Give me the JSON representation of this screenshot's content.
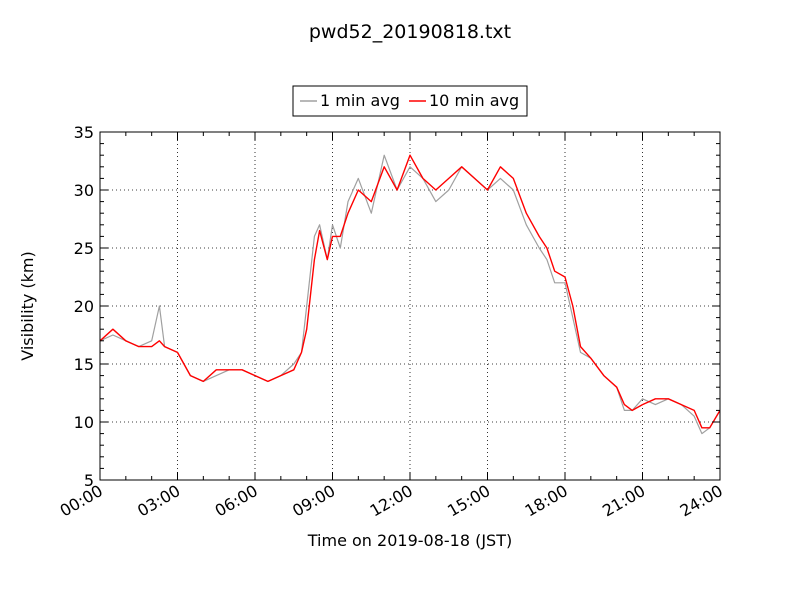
{
  "chart_data": {
    "type": "line",
    "title": "pwd52_20190818.txt",
    "xlabel": "Time on 2019-08-18 (JST)",
    "ylabel": "Visibility (km)",
    "xlim": [
      "00:00",
      "24:00"
    ],
    "ylim": [
      5,
      35
    ],
    "x_ticks": [
      "00:00",
      "03:00",
      "06:00",
      "09:00",
      "12:00",
      "15:00",
      "18:00",
      "21:00",
      "24:00"
    ],
    "y_ticks": [
      "5",
      "10",
      "15",
      "20",
      "25",
      "30",
      "35"
    ],
    "grid": true,
    "legend_position": "top-center",
    "x_unit": "hours",
    "series": [
      {
        "name": "1 min avg",
        "color": "#a0a0a0",
        "x": [
          0,
          0.5,
          1,
          1.5,
          2,
          2.3,
          2.5,
          3,
          3.5,
          4,
          4.5,
          5,
          5.5,
          6,
          6.5,
          7,
          7.5,
          7.8,
          8,
          8.3,
          8.5,
          8.8,
          9,
          9.3,
          9.6,
          10,
          10.5,
          11,
          11.5,
          12,
          12.5,
          13,
          13.5,
          14,
          14.5,
          15,
          15.5,
          16,
          16.5,
          17,
          17.3,
          17.6,
          18,
          18.3,
          18.6,
          19,
          19.5,
          20,
          20.3,
          20.6,
          21,
          21.5,
          22,
          22.5,
          23,
          23.3,
          23.6,
          24
        ],
        "y": [
          17,
          17.5,
          17,
          16.5,
          17,
          20,
          16.5,
          16,
          14,
          13.5,
          14,
          14.5,
          14.5,
          14,
          13.5,
          14,
          15,
          16,
          20,
          26,
          27,
          24,
          27,
          25,
          29,
          31,
          28,
          33,
          30,
          32,
          31,
          29,
          30,
          32,
          31,
          30,
          31,
          30,
          27,
          25,
          24,
          22,
          22,
          19,
          16,
          15.5,
          14,
          13,
          11,
          11,
          12,
          11.5,
          12,
          11.5,
          10.5,
          9,
          9.5,
          11
        ]
      },
      {
        "name": "10 min avg",
        "color": "#ff0000",
        "x": [
          0,
          0.5,
          1,
          1.5,
          2,
          2.3,
          2.5,
          3,
          3.5,
          4,
          4.5,
          5,
          5.5,
          6,
          6.5,
          7,
          7.5,
          7.8,
          8,
          8.3,
          8.5,
          8.8,
          9,
          9.3,
          9.6,
          10,
          10.5,
          11,
          11.5,
          12,
          12.5,
          13,
          13.5,
          14,
          14.5,
          15,
          15.5,
          16,
          16.5,
          17,
          17.3,
          17.6,
          18,
          18.3,
          18.6,
          19,
          19.5,
          20,
          20.3,
          20.6,
          21,
          21.5,
          22,
          22.5,
          23,
          23.3,
          23.6,
          24
        ],
        "y": [
          17,
          18,
          17,
          16.5,
          16.5,
          17,
          16.5,
          16,
          14,
          13.5,
          14.5,
          14.5,
          14.5,
          14,
          13.5,
          14,
          14.5,
          16,
          18,
          24,
          26.5,
          24,
          26,
          26,
          28,
          30,
          29,
          32,
          30,
          33,
          31,
          30,
          31,
          32,
          31,
          30,
          32,
          31,
          28,
          26,
          25,
          23,
          22.5,
          20,
          16.5,
          15.5,
          14,
          13,
          11.5,
          11,
          11.5,
          12,
          12,
          11.5,
          11,
          9.5,
          9.5,
          11
        ]
      }
    ]
  }
}
